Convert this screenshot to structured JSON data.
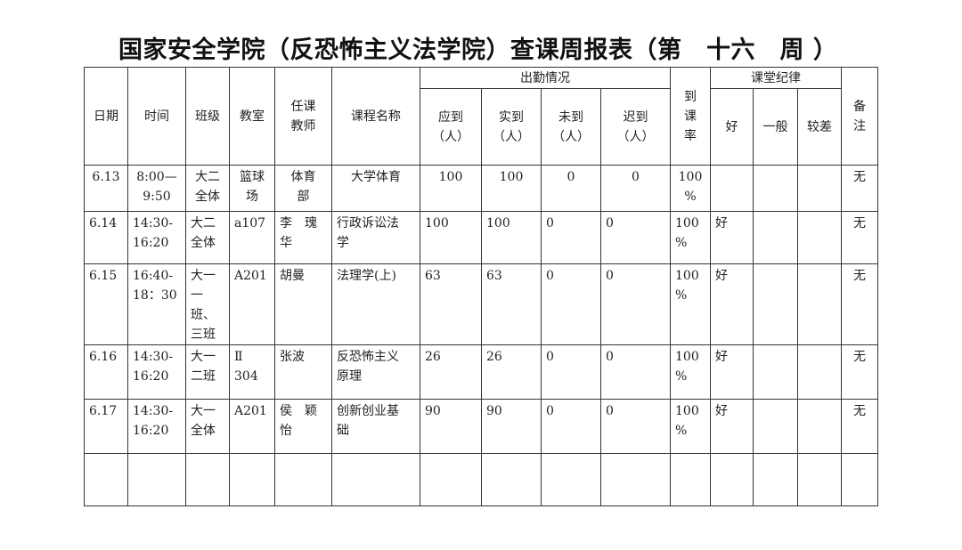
{
  "title": "国家安全学院（反恐怖主义法学院）查课周报表（第　十六　周 ）",
  "headers": {
    "date": "日期",
    "time": "时间",
    "class": "班级",
    "room": "教室",
    "teacher": "任课\n教师",
    "course": "课程名称",
    "attendance": "出勤情况",
    "expected": "应到\n（人）",
    "actual": "实到\n（人）",
    "absent": "未到\n（人）",
    "late": "迟到\n（人）",
    "rate": "到\n课\n率",
    "discipline": "课堂纪律",
    "good": "好",
    "average": "一般",
    "poor": "较差",
    "remarks": "备\n注"
  },
  "rows": [
    {
      "date": "6.13",
      "time": "8:00—\n9:50",
      "class": "大二\n全体",
      "room": "篮球\n场",
      "teacher": "体育\n部",
      "course": "大学体育",
      "expected": "100",
      "actual": "100",
      "absent": "0",
      "late": "0",
      "rate": "100\n%",
      "good": "",
      "average": "",
      "poor": "",
      "remarks": "无"
    },
    {
      "date": "6.14",
      "time": "14:30-\n16:20",
      "class": "大二\n全体",
      "room": "a107",
      "teacher": "李　瑰\n华",
      "course": "行政诉讼法\n学",
      "expected": "100",
      "actual": "100",
      "absent": "0",
      "late": "0",
      "rate": "100\n%",
      "good": "好",
      "average": "",
      "poor": "",
      "remarks": "无"
    },
    {
      "date": "6.15",
      "time": "16:40-\n18：30",
      "class": "大一\n一\n班、\n三班",
      "room": "A201",
      "teacher": "胡曼",
      "course": "法理学(上)",
      "expected": "63",
      "actual": "63",
      "absent": "0",
      "late": "0",
      "rate": "100\n%",
      "good": "好",
      "average": "",
      "poor": "",
      "remarks": "无"
    },
    {
      "date": "6.16",
      "time": "14:30-\n16:20",
      "class": "大一\n二班",
      "room": "Ⅱ\n304",
      "teacher": "张波",
      "course": "反恐怖主义\n原理",
      "expected": "26",
      "actual": "26",
      "absent": "0",
      "late": "0",
      "rate": "100\n%",
      "good": "好",
      "average": "",
      "poor": "",
      "remarks": "无"
    },
    {
      "date": "6.17",
      "time": "14:30-\n16:20",
      "class": "大一\n全体",
      "room": "A201",
      "teacher": "侯　颖\n怡",
      "course": "创新创业基\n础",
      "expected": "90",
      "actual": "90",
      "absent": "0",
      "late": "0",
      "rate": "100\n%",
      "good": "好",
      "average": "",
      "poor": "",
      "remarks": "无"
    },
    {
      "date": "",
      "time": "",
      "class": "",
      "room": "",
      "teacher": "",
      "course": "",
      "expected": "",
      "actual": "",
      "absent": "",
      "late": "",
      "rate": "",
      "good": "",
      "average": "",
      "poor": "",
      "remarks": ""
    }
  ]
}
